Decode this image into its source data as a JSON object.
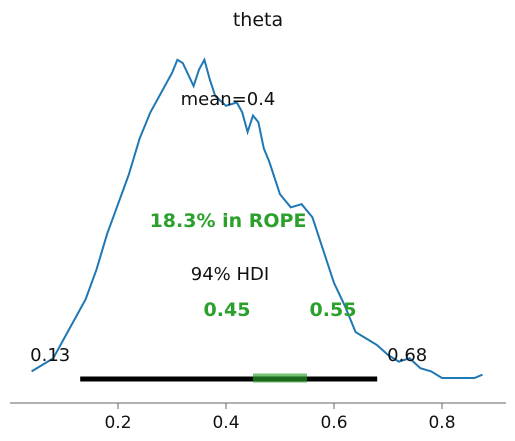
{
  "chart_data": {
    "type": "line",
    "title": "theta",
    "xlabel": "",
    "ylabel": "",
    "xlim": [
      0.02,
      0.9
    ],
    "grid": false,
    "x_ticks": [
      0.2,
      0.4,
      0.6,
      0.8
    ],
    "x_tick_labels": [
      "0.2",
      "0.4",
      "0.6",
      "0.8"
    ],
    "density_curve": {
      "color": "#1f77b4",
      "x": [
        0.04,
        0.06,
        0.08,
        0.1,
        0.12,
        0.14,
        0.16,
        0.18,
        0.2,
        0.22,
        0.24,
        0.26,
        0.28,
        0.3,
        0.31,
        0.32,
        0.34,
        0.35,
        0.36,
        0.37,
        0.38,
        0.4,
        0.42,
        0.43,
        0.44,
        0.45,
        0.46,
        0.47,
        0.48,
        0.5,
        0.52,
        0.54,
        0.56,
        0.58,
        0.6,
        0.62,
        0.64,
        0.66,
        0.68,
        0.7,
        0.72,
        0.74,
        0.76,
        0.78,
        0.8,
        0.82,
        0.84,
        0.86,
        0.875
      ],
      "y": [
        0.02,
        0.04,
        0.06,
        0.12,
        0.18,
        0.24,
        0.33,
        0.44,
        0.53,
        0.62,
        0.73,
        0.81,
        0.87,
        0.93,
        0.97,
        0.96,
        0.89,
        0.94,
        0.97,
        0.91,
        0.86,
        0.83,
        0.84,
        0.81,
        0.75,
        0.8,
        0.78,
        0.7,
        0.66,
        0.56,
        0.52,
        0.53,
        0.49,
        0.39,
        0.29,
        0.22,
        0.14,
        0.12,
        0.1,
        0.07,
        0.05,
        0.06,
        0.03,
        0.02,
        0.0,
        0.0,
        0.0,
        0.0,
        0.01
      ]
    },
    "mean": {
      "value": 0.4,
      "label": "mean=0.4"
    },
    "hdi": {
      "prob_label": "94% HDI",
      "low": 0.13,
      "high": 0.68,
      "low_label": "0.13",
      "high_label": "0.68",
      "color": "#000000"
    },
    "rope": {
      "low": 0.45,
      "high": 0.55,
      "low_label": "0.45",
      "high_label": "0.55",
      "percent_label": "18.3% in ROPE",
      "color": "#2ca02c"
    }
  }
}
